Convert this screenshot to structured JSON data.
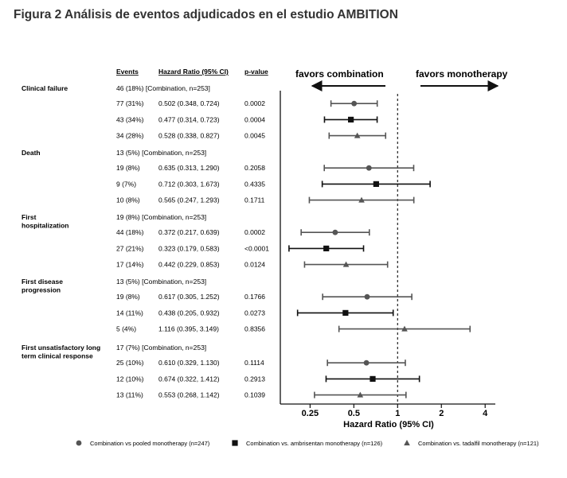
{
  "figure_title": "Figura 2 Análisis de eventos adjudicados en el estudio AMBITION",
  "headers": {
    "events": "Events",
    "hr": "Hazard Ratio (95% CI)",
    "p": "p-value"
  },
  "favors": {
    "left": "favors combination",
    "right": "favors monotherapy"
  },
  "legend": [
    {
      "marker": "circle",
      "label": "Combination vs pooled monotherapy (n=247)"
    },
    {
      "marker": "square",
      "label": "Combination vs. ambrisentan monotherapy (n=126)"
    },
    {
      "marker": "triangle",
      "label": "Combination vs. tadalfil monotherapy (n=121)"
    }
  ],
  "colors": {
    "circle": "#555555",
    "square": "#111111",
    "triangle": "#555555",
    "reference_line": "#222222"
  },
  "chart_data": {
    "type": "forest",
    "xlabel": "Hazard Ratio (95% CI)",
    "x_scale": "log2",
    "xlim": [
      0.156,
      4.7
    ],
    "ticks": [
      0.25,
      0.5,
      1,
      2,
      4
    ],
    "tick_labels": [
      "0.25",
      "0.5",
      "1",
      "2",
      "4"
    ],
    "reference_value": 1,
    "groups": [
      {
        "name": "Clinical failure",
        "combination_row": "46 (18%)   [Combination, n=253]",
        "rows": [
          {
            "marker": "circle",
            "events": "77 (31%)",
            "hr_text": "0.502  (0.348, 0.724)",
            "p": "0.0002",
            "hr": 0.502,
            "lo": 0.348,
            "hi": 0.724
          },
          {
            "marker": "square",
            "events": "43 (34%)",
            "hr_text": "0.477  (0.314, 0.723)",
            "p": "0.0004",
            "hr": 0.477,
            "lo": 0.314,
            "hi": 0.723
          },
          {
            "marker": "triangle",
            "events": "34 (28%)",
            "hr_text": "0.528  (0.338, 0.827)",
            "p": "0.0045",
            "hr": 0.528,
            "lo": 0.338,
            "hi": 0.827
          }
        ]
      },
      {
        "name": "Death",
        "combination_row": "13 (5%)   [Combination, n=253]",
        "rows": [
          {
            "marker": "circle",
            "events": "19 (8%)",
            "hr_text": "0.635  (0.313, 1.290)",
            "p": "0.2058",
            "hr": 0.635,
            "lo": 0.313,
            "hi": 1.29
          },
          {
            "marker": "square",
            "events": "9 (7%)",
            "hr_text": "0.712  (0.303, 1.673)",
            "p": "0.4335",
            "hr": 0.712,
            "lo": 0.303,
            "hi": 1.673
          },
          {
            "marker": "triangle",
            "events": "10 (8%)",
            "hr_text": "0.565  (0.247, 1.293)",
            "p": "0.1711",
            "hr": 0.565,
            "lo": 0.247,
            "hi": 1.293
          }
        ]
      },
      {
        "name": "First hospitalization",
        "combination_row": "19 (8%)  [Combination, n=253]",
        "rows": [
          {
            "marker": "circle",
            "events": "44 (18%)",
            "hr_text": "0.372  (0.217, 0.639)",
            "p": "0.0002",
            "hr": 0.372,
            "lo": 0.217,
            "hi": 0.639
          },
          {
            "marker": "square",
            "events": "27 (21%)",
            "hr_text": "0.323  (0.179, 0.583)",
            "p": "<0.0001",
            "hr": 0.323,
            "lo": 0.179,
            "hi": 0.583
          },
          {
            "marker": "triangle",
            "events": "17 (14%)",
            "hr_text": "0.442  (0.229, 0.853)",
            "p": "0.0124",
            "hr": 0.442,
            "lo": 0.229,
            "hi": 0.853
          }
        ]
      },
      {
        "name": "First disease progression",
        "combination_row": "13 (5%)   [Combination, n=253]",
        "rows": [
          {
            "marker": "circle",
            "events": "19 (8%)",
            "hr_text": "0.617  (0.305, 1.252)",
            "p": "0.1766",
            "hr": 0.617,
            "lo": 0.305,
            "hi": 1.252
          },
          {
            "marker": "square",
            "events": "14 (11%)",
            "hr_text": "0.438  (0.205, 0.932)",
            "p": "0.0273",
            "hr": 0.438,
            "lo": 0.205,
            "hi": 0.932
          },
          {
            "marker": "triangle",
            "events": "5 (4%)",
            "hr_text": "1.116  (0.395, 3.149)",
            "p": "0.8356",
            "hr": 1.116,
            "lo": 0.395,
            "hi": 3.149
          }
        ]
      },
      {
        "name": "First unsatisfactory long term clinical response",
        "combination_row": "17 (7%)   [Combination, n=253]",
        "rows": [
          {
            "marker": "circle",
            "events": "25 (10%)",
            "hr_text": "0.610  (0.329, 1.130)",
            "p": "0.1114",
            "hr": 0.61,
            "lo": 0.329,
            "hi": 1.13
          },
          {
            "marker": "square",
            "events": "12 (10%)",
            "hr_text": "0.674  (0.322, 1.412)",
            "p": "0.2913",
            "hr": 0.674,
            "lo": 0.322,
            "hi": 1.412
          },
          {
            "marker": "triangle",
            "events": "13 (11%)",
            "hr_text": "0.553  (0.268, 1.142)",
            "p": "0.1039",
            "hr": 0.553,
            "lo": 0.268,
            "hi": 1.142
          }
        ]
      }
    ]
  }
}
